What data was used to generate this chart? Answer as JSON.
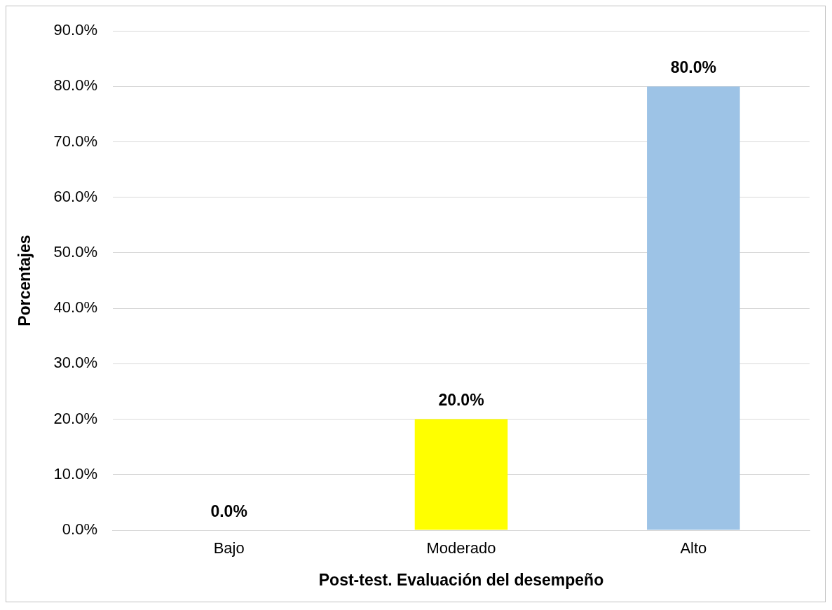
{
  "chart_data": {
    "type": "bar",
    "xlabel": "Post-test. Evaluación del desempeño",
    "ylabel": "Porcentajes",
    "categories": [
      "Bajo",
      "Moderado",
      "Alto"
    ],
    "values": [
      0,
      20,
      80
    ],
    "colors": [
      "#ff0000",
      "#ffff00",
      "#9dc3e6"
    ],
    "value_labels": [
      "0.0%",
      "20.0%",
      "80.0%"
    ],
    "ylim": [
      0,
      90
    ],
    "yticks": [
      {
        "value": 0,
        "label": "0.0%"
      },
      {
        "value": 10,
        "label": "10.0%"
      },
      {
        "value": 20,
        "label": "20.0%"
      },
      {
        "value": 30,
        "label": "30.0%"
      },
      {
        "value": 40,
        "label": "40.0%"
      },
      {
        "value": 50,
        "label": "50.0%"
      },
      {
        "value": 60,
        "label": "60.0%"
      },
      {
        "value": 70,
        "label": "70.0%"
      },
      {
        "value": 80,
        "label": "80.0%"
      },
      {
        "value": 90,
        "label": "90.0%"
      }
    ],
    "grid": "y",
    "legend": false
  }
}
